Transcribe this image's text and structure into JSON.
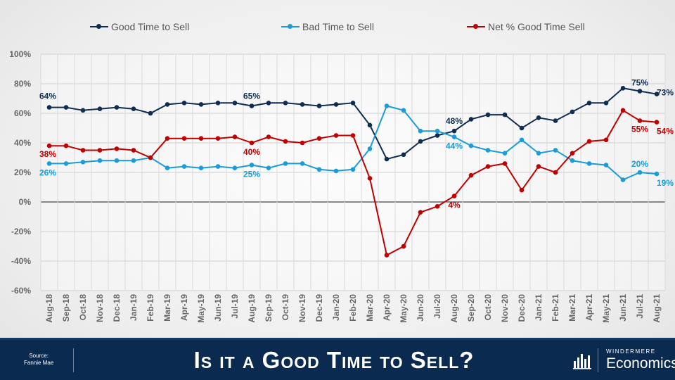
{
  "chart_data": {
    "type": "line",
    "categories": [
      "Aug-18",
      "Sep-18",
      "Oct-18",
      "Nov-18",
      "Dec-18",
      "Jan-19",
      "Feb-19",
      "Mar-19",
      "Apr-19",
      "May-19",
      "Jun-19",
      "Jul-19",
      "Aug-19",
      "Sep-19",
      "Oct-19",
      "Nov-19",
      "Dec-19",
      "Jan-20",
      "Feb-20",
      "Mar-20",
      "Apr-20",
      "May-20",
      "Jun-20",
      "Jul-20",
      "Aug-20",
      "Sep-20",
      "Oct-20",
      "Nov-20",
      "Dec-20",
      "Jan-21",
      "Feb-21",
      "Mar-21",
      "Apr-21",
      "May-21",
      "Jun-21",
      "Jul-21",
      "Aug-21"
    ],
    "ylim": [
      -60,
      100
    ],
    "yticks": [
      "-60%",
      "-40%",
      "-20%",
      "0%",
      "20%",
      "40%",
      "60%",
      "80%",
      "100%"
    ],
    "grid": true,
    "legend_position": "top",
    "series": [
      {
        "name": "Good Time to Sell",
        "color": "#0f2d52",
        "values": [
          64,
          64,
          62,
          63,
          64,
          63,
          60,
          66,
          67,
          66,
          67,
          67,
          65,
          67,
          67,
          66,
          65,
          66,
          67,
          52,
          29,
          32,
          41,
          45,
          48,
          56,
          59,
          59,
          50,
          57,
          55,
          61,
          67,
          67,
          77,
          75,
          73
        ]
      },
      {
        "name": "Bad Time to Sell",
        "color": "#1a9cd8",
        "values": [
          26,
          26,
          27,
          28,
          28,
          28,
          30,
          23,
          24,
          23,
          24,
          23,
          25,
          23,
          26,
          26,
          22,
          21,
          22,
          36,
          65,
          62,
          48,
          48,
          44,
          38,
          35,
          33,
          42,
          33,
          35,
          28,
          26,
          25,
          15,
          20,
          19
        ]
      },
      {
        "name": "Net % Good Time Sell",
        "color": "#c00000",
        "values": [
          38,
          38,
          35,
          35,
          36,
          35,
          30,
          43,
          43,
          43,
          43,
          44,
          40,
          44,
          41,
          40,
          43,
          45,
          45,
          16,
          -36,
          -30,
          -7,
          -3,
          4,
          18,
          24,
          26,
          8,
          24,
          20,
          33,
          41,
          42,
          62,
          55,
          54
        ]
      }
    ],
    "data_labels": [
      {
        "series": 0,
        "index": 0,
        "text": "64%"
      },
      {
        "series": 0,
        "index": 12,
        "text": "65%"
      },
      {
        "series": 0,
        "index": 24,
        "text": "48%"
      },
      {
        "series": 0,
        "index": 35,
        "text": "75%"
      },
      {
        "series": 0,
        "index": 36,
        "text": "73%"
      },
      {
        "series": 1,
        "index": 0,
        "text": "26%"
      },
      {
        "series": 1,
        "index": 12,
        "text": "25%"
      },
      {
        "series": 1,
        "index": 24,
        "text": "44%"
      },
      {
        "series": 1,
        "index": 35,
        "text": "20%"
      },
      {
        "series": 1,
        "index": 36,
        "text": "19%"
      },
      {
        "series": 2,
        "index": 0,
        "text": "38%"
      },
      {
        "series": 2,
        "index": 12,
        "text": "40%"
      },
      {
        "series": 2,
        "index": 24,
        "text": "4%"
      },
      {
        "series": 2,
        "index": 35,
        "text": "55%"
      },
      {
        "series": 2,
        "index": 36,
        "text": "54%"
      }
    ]
  },
  "footer": {
    "source_line1": "Source:",
    "source_line2": "Fannie Mae",
    "title": "Is it a Good Time to Sell?",
    "brand_top": "WINDERMERE",
    "brand_bottom": "Economics"
  }
}
